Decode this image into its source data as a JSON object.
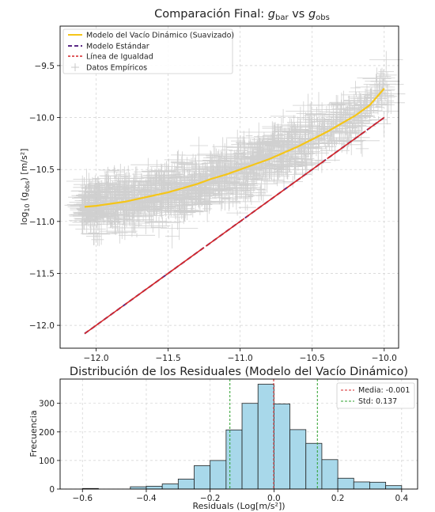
{
  "chart_data": [
    {
      "type": "scatter",
      "title": "Comparación Final: g_bar vs g_obs",
      "title_parts": {
        "prefix": "Comparación Final: ",
        "g1": "g",
        "sub1": "bar",
        "mid": " vs ",
        "g2": "g",
        "sub2": "obs"
      },
      "xlabel": "",
      "ylabel": "log10 (g_obs) [m/s²]",
      "ylabel_parts": {
        "log": "log",
        "logsub": "10",
        "open": " (g",
        "sub": "obs",
        "close": ") [m/s²]"
      },
      "xlim": [
        -12.25,
        -9.9
      ],
      "ylim": [
        -12.22,
        -9.12
      ],
      "xticks": [
        -12.0,
        -11.5,
        -11.0,
        -10.5,
        -10.0
      ],
      "xtick_labels": [
        "−12.0",
        "−11.5",
        "−11.0",
        "−10.5",
        "−10.0"
      ],
      "yticks": [
        -12.0,
        -11.5,
        -11.0,
        -10.5,
        -10.0,
        -9.5
      ],
      "ytick_labels": [
        "−12.0",
        "−11.5",
        "−11.0",
        "−10.5",
        "−10.0",
        "−9.5"
      ],
      "grid": true,
      "legend_position": "top-left",
      "legend": [
        {
          "label": "Modelo del Vacío Dinámico (Suavizado)",
          "color": "#f5c518",
          "style": "solid"
        },
        {
          "label": "Modelo Estándar",
          "color": "#5b2a86",
          "style": "dashed"
        },
        {
          "label": "Línea de Igualdad",
          "color": "#d62728",
          "style": "dashed"
        },
        {
          "label": "Datos Empíricos",
          "color": "#c8c8c8",
          "style": "marker"
        }
      ],
      "series": [
        {
          "name": "Modelo del Vacío Dinámico (Suavizado)",
          "color": "#f5c518",
          "x": [
            -12.08,
            -12.0,
            -11.9,
            -11.8,
            -11.7,
            -11.6,
            -11.5,
            -11.4,
            -11.3,
            -11.2,
            -11.1,
            -11.0,
            -10.9,
            -10.8,
            -10.7,
            -10.6,
            -10.5,
            -10.4,
            -10.3,
            -10.2,
            -10.1,
            -10.0
          ],
          "y": [
            -10.86,
            -10.85,
            -10.83,
            -10.81,
            -10.78,
            -10.75,
            -10.72,
            -10.68,
            -10.64,
            -10.59,
            -10.55,
            -10.5,
            -10.45,
            -10.4,
            -10.34,
            -10.28,
            -10.21,
            -10.14,
            -10.06,
            -9.98,
            -9.88,
            -9.72
          ]
        },
        {
          "name": "Modelo Estándar",
          "color": "#5b2a86",
          "x": [
            -12.08,
            -10.0
          ],
          "y": [
            -12.08,
            -10.0
          ]
        },
        {
          "name": "Línea de Igualdad",
          "color": "#d62728",
          "x": [
            -12.08,
            -10.0
          ],
          "y": [
            -12.08,
            -10.0
          ]
        },
        {
          "name": "Datos Empíricos",
          "color": "#c8c8c8",
          "description_of_cloud": "scatter with error bars following the smoothed model with spread ~0.14 dex",
          "x_range": [
            -12.1,
            -9.95
          ]
        }
      ]
    },
    {
      "type": "bar",
      "title": "Distribución de los Residuales (Modelo del Vacío Dinámico)",
      "xlabel": "Residuals (Log[m/s²])",
      "ylabel": "Frecuencia",
      "xlim": [
        -0.67,
        0.45
      ],
      "ylim": [
        0,
        385
      ],
      "xticks": [
        -0.6,
        -0.4,
        -0.2,
        0.0,
        0.2,
        0.4
      ],
      "xtick_labels": [
        "−0.6",
        "−0.4",
        "−0.2",
        "0.0",
        "0.2",
        "0.4"
      ],
      "yticks": [
        0,
        100,
        200,
        300
      ],
      "ytick_labels": [
        "0",
        "100",
        "200",
        "300"
      ],
      "grid": true,
      "legend_position": "top-right",
      "bin_width": 0.05,
      "bins": [
        {
          "x0": -0.6,
          "count": 2
        },
        {
          "x0": -0.45,
          "count": 8
        },
        {
          "x0": -0.4,
          "count": 10
        },
        {
          "x0": -0.35,
          "count": 18
        },
        {
          "x0": -0.3,
          "count": 35
        },
        {
          "x0": -0.25,
          "count": 82
        },
        {
          "x0": -0.2,
          "count": 100
        },
        {
          "x0": -0.15,
          "count": 207
        },
        {
          "x0": -0.1,
          "count": 300
        },
        {
          "x0": -0.05,
          "count": 367
        },
        {
          "x0": 0.0,
          "count": 298
        },
        {
          "x0": 0.05,
          "count": 208
        },
        {
          "x0": 0.1,
          "count": 160
        },
        {
          "x0": 0.15,
          "count": 103
        },
        {
          "x0": 0.2,
          "count": 38
        },
        {
          "x0": 0.25,
          "count": 25
        },
        {
          "x0": 0.3,
          "count": 24
        },
        {
          "x0": 0.35,
          "count": 12
        }
      ],
      "bar_color": "#a8d8ea",
      "mean": -0.001,
      "std": 0.137,
      "legend": [
        {
          "label": "Media: -0.001",
          "color": "#d62728",
          "style": "dashed"
        },
        {
          "label": "Std: 0.137",
          "color": "#2ca02c",
          "style": "dashed"
        }
      ]
    }
  ]
}
